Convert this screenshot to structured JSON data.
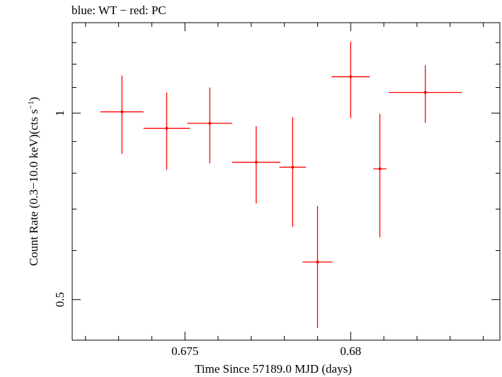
{
  "chart_data": {
    "type": "scatter",
    "title": "blue: WT − red: PC",
    "xlabel": "Time Since 57189.0 MJD (days)",
    "ylabel": "Count Rate (0.3−10.0 keV)(cts s",
    "ylabel_sup": "−1",
    "ylabel_tail": ")",
    "xlim": [
      0.6716,
      0.6845
    ],
    "ylim": [
      0.43,
      1.4
    ],
    "yscale": "log",
    "grid": false,
    "x_ticks": [
      {
        "value": 0.675,
        "label": "0.675"
      },
      {
        "value": 0.68,
        "label": "0.68"
      }
    ],
    "y_ticks": [
      {
        "value": 0.5,
        "label": "0.5"
      },
      {
        "value": 1,
        "label": "1"
      }
    ],
    "series": [
      {
        "color": "#ff0000",
        "points": [
          {
            "x": 0.6731,
            "y": 1.005,
            "xerr": 0.00065,
            "ylo": 0.86,
            "yhi": 1.15
          },
          {
            "x": 0.67445,
            "y": 0.945,
            "xerr": 0.0007,
            "ylo": 0.81,
            "yhi": 1.08
          },
          {
            "x": 0.67575,
            "y": 0.963,
            "xerr": 0.00068,
            "ylo": 0.83,
            "yhi": 1.1
          },
          {
            "x": 0.67715,
            "y": 0.833,
            "xerr": 0.00073,
            "ylo": 0.715,
            "yhi": 0.953
          },
          {
            "x": 0.67825,
            "y": 0.818,
            "xerr": 0.0004,
            "ylo": 0.655,
            "yhi": 0.985
          },
          {
            "x": 0.679,
            "y": 0.575,
            "xerr": 0.00045,
            "ylo": 0.45,
            "yhi": 0.708
          },
          {
            "x": 0.68,
            "y": 1.145,
            "xerr": 0.00058,
            "ylo": 0.982,
            "yhi": 1.305
          },
          {
            "x": 0.68088,
            "y": 0.813,
            "xerr": 0.0002,
            "ylo": 0.63,
            "yhi": 0.998
          },
          {
            "x": 0.68225,
            "y": 1.08,
            "xerr": 0.0011,
            "ylo": 0.965,
            "yhi": 1.195
          }
        ]
      }
    ]
  }
}
